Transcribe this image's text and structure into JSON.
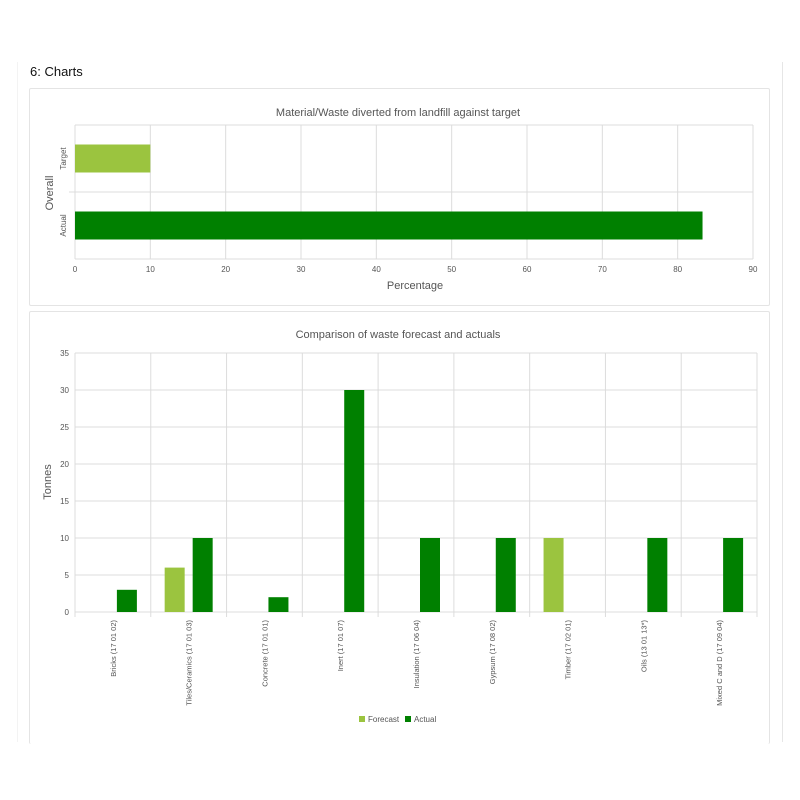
{
  "page": {
    "section_title": "6: Charts"
  },
  "colors": {
    "forecast": "#9bc43f",
    "actual": "#008000",
    "grid": "#dcdcdc",
    "text": "#555555"
  },
  "chart_data": [
    {
      "type": "bar",
      "orientation": "horizontal",
      "title": "Material/Waste diverted from landfill against target",
      "xlabel": "Percentage",
      "ylabel": "Overall",
      "categories": [
        "Target",
        "Actual"
      ],
      "values": [
        10,
        83.3
      ],
      "xlim": [
        0,
        90
      ],
      "xticks": [
        "0",
        "10",
        "20",
        "30",
        "40",
        "50",
        "60",
        "70",
        "80",
        "90"
      ],
      "grid": true
    },
    {
      "type": "bar",
      "title": "Comparison of waste forecast and actuals",
      "xlabel": "",
      "ylabel": "Tonnes",
      "ylim": [
        0,
        35
      ],
      "yticks": [
        "0",
        "5",
        "10",
        "15",
        "20",
        "25",
        "30",
        "35"
      ],
      "categories": [
        "Bricks (17 01 02)",
        "Tiles/Ceramics (17 01 03)",
        "Concrete (17 01 01)",
        "Inert (17 01 07)",
        "Insulation (17 06 04)",
        "Gypsum (17 08 02)",
        "Timber (17 02 01)",
        "Oils (13 01 13*)",
        "Mixed C and D (17 09 04)"
      ],
      "series": [
        {
          "name": "Forecast",
          "values": [
            0,
            6,
            0,
            0,
            0,
            0,
            10,
            0,
            0
          ]
        },
        {
          "name": "Actual",
          "values": [
            3,
            10,
            2,
            30,
            10,
            10,
            0,
            10,
            10
          ]
        }
      ],
      "legend": "bottom",
      "grid": true
    }
  ]
}
